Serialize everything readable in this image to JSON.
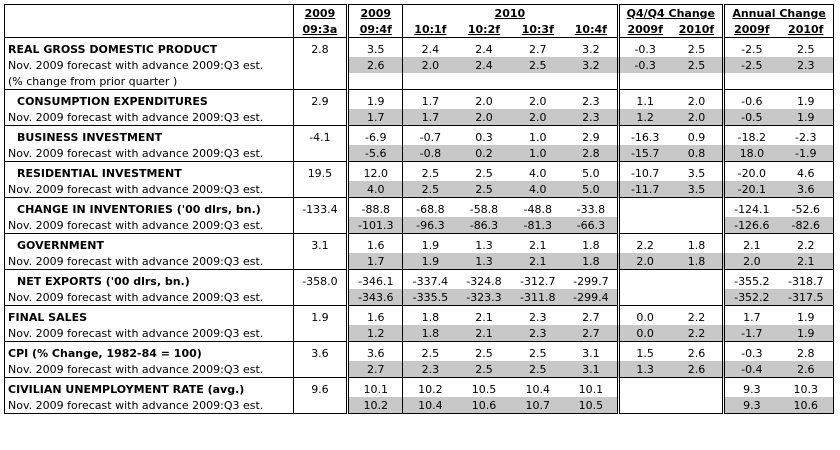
{
  "header": {
    "groups": [
      "2009",
      "2009",
      "2010",
      "Q4/Q4 Change",
      "Annual Change"
    ],
    "columns": [
      "09:3a",
      "09:4f",
      "10:1f",
      "10:2f",
      "10:3f",
      "10:4f",
      "2009f",
      "2010f",
      "2009f",
      "2010f"
    ]
  },
  "sections": [
    {
      "label": "REAL GROSS DOMESTIC PRODUCT",
      "values": [
        "2.8",
        "3.5",
        "2.4",
        "2.4",
        "2.7",
        "3.2",
        "-0.3",
        "2.5",
        "-2.5",
        "2.5"
      ],
      "forecast_label": "Nov. 2009 forecast with advance 2009:Q3 est.",
      "forecast_values": [
        "2.6",
        "2.0",
        "2.4",
        "2.5",
        "3.2",
        "-0.3",
        "2.5",
        "-2.5",
        "2.3"
      ],
      "note": "(% change from prior quarter )"
    },
    {
      "label": "CONSUMPTION EXPENDITURES",
      "values": [
        "2.9",
        "1.9",
        "1.7",
        "2.0",
        "2.0",
        "2.3",
        "1.1",
        "2.0",
        "-0.6",
        "1.9"
      ],
      "forecast_label": "Nov. 2009 forecast with advance 2009:Q3 est.",
      "forecast_values": [
        "1.7",
        "1.7",
        "2.0",
        "2.0",
        "2.3",
        "1.2",
        "2.0",
        "-0.5",
        "1.9"
      ]
    },
    {
      "label": "BUSINESS INVESTMENT",
      "values": [
        "-4.1",
        "-6.9",
        "-0.7",
        "0.3",
        "1.0",
        "2.9",
        "-16.3",
        "0.9",
        "-18.2",
        "-2.3"
      ],
      "forecast_label": "Nov. 2009 forecast with advance 2009:Q3 est.",
      "forecast_values": [
        "-5.6",
        "-0.8",
        "0.2",
        "1.0",
        "2.8",
        "-15.7",
        "0.8",
        "18.0",
        "-1.9"
      ]
    },
    {
      "label": "RESIDENTIAL INVESTMENT",
      "values": [
        "19.5",
        "12.0",
        "2.5",
        "2.5",
        "4.0",
        "5.0",
        "-10.7",
        "3.5",
        "-20.0",
        "4.6"
      ],
      "forecast_label": "Nov. 2009 forecast with advance 2009:Q3 est.",
      "forecast_values": [
        "4.0",
        "2.5",
        "2.5",
        "4.0",
        "5.0",
        "-11.7",
        "3.5",
        "-20.1",
        "3.6"
      ]
    },
    {
      "label": "CHANGE IN INVENTORIES ('00 dlrs, bn.)",
      "values": [
        "-133.4",
        "-88.8",
        "-68.8",
        "-58.8",
        "-48.8",
        "-33.8",
        null,
        null,
        "-124.1",
        "-52.6"
      ],
      "forecast_label": "Nov. 2009 forecast with advance 2009:Q3 est.",
      "forecast_values": [
        "-101.3",
        "-96.3",
        "-86.3",
        "-81.3",
        "-66.3",
        null,
        null,
        "-126.6",
        "-82.6"
      ]
    },
    {
      "label": "GOVERNMENT",
      "values": [
        "3.1",
        "1.6",
        "1.9",
        "1.3",
        "2.1",
        "1.8",
        "2.2",
        "1.8",
        "2.1",
        "2.2"
      ],
      "forecast_label": "Nov. 2009 forecast with advance 2009:Q3 est.",
      "forecast_values": [
        "1.7",
        "1.9",
        "1.3",
        "2.1",
        "1.8",
        "2.0",
        "1.8",
        "2.0",
        "2.1"
      ]
    },
    {
      "label": "NET EXPORTS ('00 dlrs, bn.)",
      "values": [
        "-358.0",
        "-346.1",
        "-337.4",
        "-324.8",
        "-312.7",
        "-299.7",
        null,
        null,
        "-355.2",
        "-318.7"
      ],
      "forecast_label": "Nov. 2009 forecast with advance 2009:Q3 est.",
      "forecast_values": [
        "-343.6",
        "-335.5",
        "-323.3",
        "-311.8",
        "-299.4",
        null,
        null,
        "-352.2",
        "-317.5"
      ]
    },
    {
      "label": "FINAL SALES",
      "values": [
        "1.9",
        "1.6",
        "1.8",
        "2.1",
        "2.3",
        "2.7",
        "0.0",
        "2.2",
        "1.7",
        "1.9"
      ],
      "forecast_label": "Nov. 2009 forecast with advance 2009:Q3 est.",
      "forecast_values": [
        "1.2",
        "1.8",
        "2.1",
        "2.3",
        "2.7",
        "0.0",
        "2.2",
        "-1.7",
        "1.9"
      ]
    },
    {
      "label": "CPI (% Change, 1982-84 = 100)",
      "values": [
        "3.6",
        "3.6",
        "2.5",
        "2.5",
        "2.5",
        "3.1",
        "1.5",
        "2.6",
        "-0.3",
        "2.8"
      ],
      "forecast_label": "Nov. 2009 forecast with advance 2009:Q3 est.",
      "forecast_values": [
        "2.7",
        "2.3",
        "2.5",
        "2.5",
        "3.1",
        "1.3",
        "2.6",
        "-0.4",
        "2.6"
      ]
    },
    {
      "label": "CIVILIAN UNEMPLOYMENT RATE (avg.)",
      "values": [
        "9.6",
        "10.1",
        "10.2",
        "10.5",
        "10.4",
        "10.1",
        null,
        null,
        "9.3",
        "10.3"
      ],
      "forecast_label": "Nov. 2009 forecast with advance 2009:Q3 est.",
      "forecast_values": [
        "10.2",
        "10.4",
        "10.6",
        "10.7",
        "10.5",
        null,
        null,
        "9.3",
        "10.6"
      ]
    }
  ]
}
